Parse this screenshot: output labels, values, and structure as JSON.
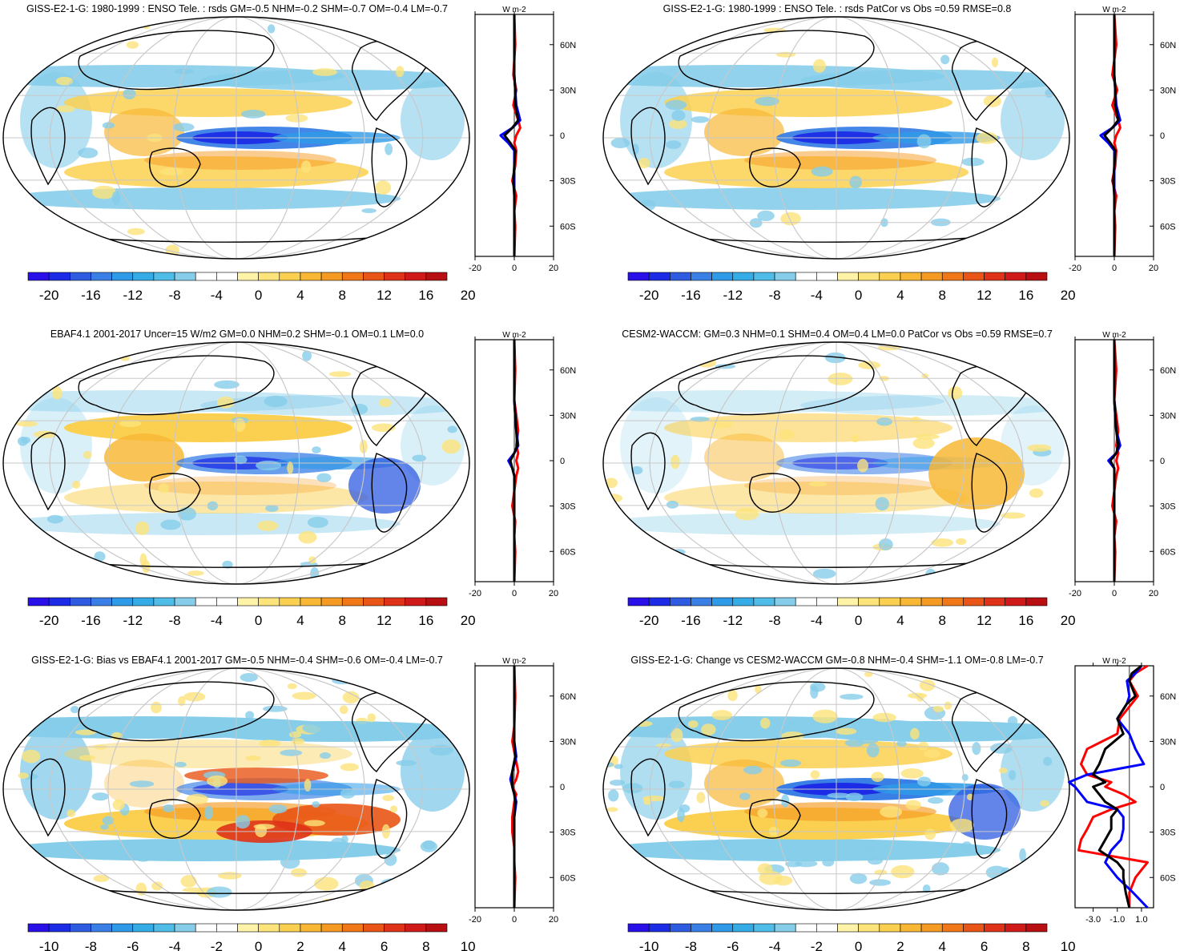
{
  "figure": {
    "panels": [
      {
        "id": "p1",
        "title": "GISS-E2-1-G: 1980-1999 : ENSO Tele. : rsds GM=-0.5 NHM=-0.2 SHM=-0.7 OM=-0.4 LM=-0.7",
        "colorbar_ticks": [
          "-20",
          "-16",
          "-12",
          "-8",
          "-4",
          "0",
          "4",
          "8",
          "12",
          "16",
          "20"
        ],
        "profile_xticks": [
          "-20",
          "0",
          "20"
        ],
        "profile_unit": "W m-2",
        "lat_ticks": [
          "60N",
          "30N",
          "0",
          "30S",
          "60S"
        ]
      },
      {
        "id": "p2",
        "title": "GISS-E2-1-G: 1980-1999 : ENSO Tele. : rsds PatCor vs Obs =0.59 RMSE=0.8",
        "colorbar_ticks": [
          "-20",
          "-16",
          "-12",
          "-8",
          "-4",
          "0",
          "4",
          "8",
          "12",
          "16",
          "20"
        ],
        "profile_xticks": [
          "-20",
          "0",
          "20"
        ],
        "profile_unit": "W m-2",
        "lat_ticks": [
          "60N",
          "30N",
          "0",
          "30S",
          "60S"
        ]
      },
      {
        "id": "p3",
        "title": "EBAF4.1 2001-2017 Uncer=15 W/m2 GM=0.0 NHM=0.2 SHM=-0.1 OM=0.1 LM=0.0",
        "colorbar_ticks": [
          "-20",
          "-16",
          "-12",
          "-8",
          "-4",
          "0",
          "4",
          "8",
          "12",
          "16",
          "20"
        ],
        "profile_xticks": [
          "-20",
          "0",
          "20"
        ],
        "profile_unit": "W m-2",
        "lat_ticks": [
          "60N",
          "30N",
          "0",
          "30S",
          "60S"
        ]
      },
      {
        "id": "p4",
        "title": "CESM2-WACCM: GM=0.3 NHM=0.1 SHM=0.4 OM=0.4 LM=0.0 PatCor vs Obs =0.59 RMSE=0.7",
        "colorbar_ticks": [
          "-20",
          "-16",
          "-12",
          "-8",
          "-4",
          "0",
          "4",
          "8",
          "12",
          "16",
          "20"
        ],
        "profile_xticks": [
          "-20",
          "0",
          "20"
        ],
        "profile_unit": "W m-2",
        "lat_ticks": [
          "60N",
          "30N",
          "0",
          "30S",
          "60S"
        ]
      },
      {
        "id": "p5",
        "title": "GISS-E2-1-G: Bias vs EBAF4.1 2001-2017 GM=-0.5 NHM=-0.4 SHM=-0.6 OM=-0.4 LM=-0.7",
        "colorbar_ticks": [
          "-10",
          "-8",
          "-6",
          "-4",
          "-2",
          "0",
          "2",
          "4",
          "6",
          "8",
          "10"
        ],
        "profile_xticks": [
          "-20",
          "0",
          "20"
        ],
        "profile_unit": "W m-2",
        "lat_ticks": [
          "60N",
          "30N",
          "0",
          "30S",
          "60S"
        ]
      },
      {
        "id": "p6",
        "title": "GISS-E2-1-G: Change vs CESM2-WACCM GM=-0.8 NHM=-0.4 SHM=-1.1 OM=-0.8 LM=-0.7",
        "colorbar_ticks": [
          "-10",
          "-8",
          "-6",
          "-4",
          "-2",
          "0",
          "2",
          "4",
          "6",
          "8",
          "10"
        ],
        "profile_xticks": [
          "-3.0",
          "-1.0",
          "1.0"
        ],
        "profile_unit": "W m-2",
        "lat_ticks": [
          "60N",
          "30N",
          "0",
          "30S",
          "60S"
        ]
      }
    ],
    "colorbar_colors": [
      "#2a10e8",
      "#1c2ce6",
      "#2f5be0",
      "#3a7fe6",
      "#2f9be8",
      "#35ace6",
      "#4fbde8",
      "#86cdea",
      "#ffffff",
      "#ffffff",
      "#fff3a8",
      "#fde47a",
      "#fbd050",
      "#f8b836",
      "#f59a22",
      "#f07818",
      "#e95516",
      "#de3318",
      "#d01a1a",
      "#b80f12"
    ]
  },
  "chart_data": [
    {
      "type": "heatmap",
      "title": "GISS-E2-1-G: 1980-1999 : ENSO Tele. : rsds GM=-0.5 NHM=-0.2 SHM=-0.7 OM=-0.4 LM=-0.7",
      "colorbar_range": [
        -20,
        20
      ],
      "profile": {
        "x_range": [
          -20,
          20
        ],
        "latitude_range": [
          -80,
          80
        ],
        "series": [
          {
            "color": "#ff0000",
            "lat": [
              80,
              60,
              40,
              30,
              20,
              10,
              5,
              0,
              -5,
              -10,
              -20,
              -30,
              -40,
              -50,
              -60,
              -80
            ],
            "values": [
              0,
              0.5,
              -0.5,
              1,
              -0.5,
              2,
              3,
              1,
              0,
              1,
              0.5,
              -1,
              1,
              0,
              0.5,
              0
            ]
          },
          {
            "color": "#0000ff",
            "lat": [
              80,
              60,
              40,
              30,
              20,
              10,
              5,
              0,
              -5,
              -10,
              -20,
              -30,
              -40,
              -50,
              -60,
              -80
            ],
            "values": [
              0,
              0,
              0,
              0.5,
              1,
              3,
              -1,
              -7,
              -3,
              0,
              0,
              0,
              0,
              0,
              0,
              0
            ]
          },
          {
            "color": "#000000",
            "lat": [
              80,
              60,
              40,
              30,
              20,
              10,
              5,
              0,
              -5,
              -10,
              -20,
              -30,
              -40,
              -50,
              -60,
              -80
            ],
            "values": [
              0,
              0,
              0,
              0.5,
              0.5,
              2,
              -1,
              -5,
              -2,
              0.5,
              0,
              -0.5,
              0,
              0,
              0,
              0
            ]
          }
        ]
      }
    },
    {
      "type": "heatmap",
      "title": "GISS-E2-1-G: 1980-1999 : ENSO Tele. : rsds PatCor vs Obs =0.59 RMSE=0.8",
      "colorbar_range": [
        -20,
        20
      ],
      "profile": {
        "x_range": [
          -20,
          20
        ],
        "latitude_range": [
          -80,
          80
        ],
        "series": [
          {
            "color": "#ff0000",
            "lat": [
              80,
              60,
              40,
              30,
              20,
              10,
              5,
              0,
              -5,
              -10,
              -20,
              -30,
              -40,
              -50,
              -60,
              -80
            ],
            "values": [
              0,
              1,
              -1,
              1.5,
              -1,
              2,
              3,
              1,
              0,
              1,
              0.5,
              -1,
              1,
              0,
              0.5,
              0
            ]
          },
          {
            "color": "#0000ff",
            "lat": [
              80,
              60,
              40,
              30,
              20,
              10,
              5,
              0,
              -5,
              -10,
              -20,
              -30,
              -40,
              -50,
              -60,
              -80
            ],
            "values": [
              0,
              0,
              0,
              0.5,
              1,
              3,
              -1,
              -7,
              -3,
              0,
              0,
              0,
              0,
              0,
              0,
              0
            ]
          },
          {
            "color": "#000000",
            "lat": [
              80,
              60,
              40,
              30,
              20,
              10,
              5,
              0,
              -5,
              -10,
              -20,
              -30,
              -40,
              -50,
              -60,
              -80
            ],
            "values": [
              0,
              0,
              0,
              0.5,
              0.5,
              2,
              -1,
              -5,
              -2,
              0.5,
              0,
              -0.5,
              0,
              0,
              0,
              0
            ]
          }
        ]
      }
    },
    {
      "type": "heatmap",
      "title": "EBAF4.1 2001-2017 Uncer=15 W/m2 GM=0.0 NHM=0.2 SHM=-0.1 OM=0.1 LM=0.0",
      "colorbar_range": [
        -20,
        20
      ],
      "profile": {
        "x_range": [
          -20,
          20
        ],
        "latitude_range": [
          -80,
          80
        ],
        "series": [
          {
            "color": "#ff0000",
            "lat": [
              80,
              60,
              40,
              30,
              20,
              10,
              5,
              0,
              -5,
              -10,
              -20,
              -30,
              -40,
              -50,
              -60,
              -80
            ],
            "values": [
              0,
              0.5,
              0,
              1,
              2,
              1,
              2,
              1,
              2,
              1,
              0,
              -1,
              0.5,
              0,
              0.5,
              0
            ]
          },
          {
            "color": "#0000ff",
            "lat": [
              80,
              60,
              40,
              30,
              20,
              10,
              5,
              0,
              -5,
              -10,
              -20,
              -30,
              -40,
              -50,
              -60,
              -80
            ],
            "values": [
              0,
              0,
              0,
              0.5,
              1,
              2,
              0,
              -3,
              -1,
              0,
              0,
              0,
              0,
              0,
              0,
              0
            ]
          },
          {
            "color": "#000000",
            "lat": [
              80,
              60,
              40,
              30,
              20,
              10,
              5,
              0,
              -5,
              -10,
              -20,
              -30,
              -40,
              -50,
              -60,
              -80
            ],
            "values": [
              0,
              0,
              0,
              0.5,
              1,
              1.5,
              0,
              -2,
              -1,
              0,
              0,
              0,
              0,
              0,
              0,
              0
            ]
          }
        ]
      }
    },
    {
      "type": "heatmap",
      "title": "CESM2-WACCM: GM=0.3 NHM=0.1 SHM=0.4 OM=0.4 LM=0.0 PatCor vs Obs =0.59 RMSE=0.7",
      "colorbar_range": [
        -20,
        20
      ],
      "profile": {
        "x_range": [
          -20,
          20
        ],
        "latitude_range": [
          -80,
          80
        ],
        "series": [
          {
            "color": "#ff0000",
            "lat": [
              80,
              60,
              40,
              30,
              20,
              10,
              5,
              0,
              -5,
              -10,
              -20,
              -30,
              -40,
              -50,
              -60,
              -80
            ],
            "values": [
              0,
              1,
              0,
              1,
              2,
              1,
              2,
              1,
              2,
              1,
              0,
              -1,
              1,
              0,
              0.5,
              0
            ]
          },
          {
            "color": "#0000ff",
            "lat": [
              80,
              60,
              40,
              30,
              20,
              10,
              5,
              0,
              -5,
              -10,
              -20,
              -30,
              -40,
              -50,
              -60,
              -80
            ],
            "values": [
              0,
              0,
              0,
              0.5,
              1,
              3,
              1,
              -3,
              0,
              0,
              0,
              0,
              0,
              0,
              0,
              0
            ]
          },
          {
            "color": "#000000",
            "lat": [
              80,
              60,
              40,
              30,
              20,
              10,
              5,
              0,
              -5,
              -10,
              -20,
              -30,
              -40,
              -50,
              -60,
              -80
            ],
            "values": [
              0,
              0,
              0,
              0.5,
              1,
              2,
              1,
              -2,
              0,
              0,
              0,
              0,
              0,
              0,
              0,
              0
            ]
          }
        ]
      }
    },
    {
      "type": "heatmap",
      "title": "GISS-E2-1-G: Bias vs EBAF4.1 2001-2017 GM=-0.5 NHM=-0.4 SHM=-0.6 OM=-0.4 LM=-0.7",
      "colorbar_range": [
        -10,
        10
      ],
      "profile": {
        "x_range": [
          -20,
          20
        ],
        "latitude_range": [
          -80,
          80
        ],
        "series": [
          {
            "color": "#ff0000",
            "lat": [
              80,
              60,
              40,
              30,
              20,
              10,
              5,
              0,
              -5,
              -10,
              -20,
              -30,
              -40,
              -50,
              -60,
              -80
            ],
            "values": [
              0,
              0.5,
              0,
              -1,
              0.5,
              2,
              1,
              -1,
              1,
              0,
              -1,
              -1,
              0,
              0,
              0.5,
              0
            ]
          },
          {
            "color": "#0000ff",
            "lat": [
              80,
              60,
              40,
              30,
              20,
              10,
              5,
              0,
              -5,
              -10,
              -20,
              -30,
              -40,
              -50,
              -60,
              -80
            ],
            "values": [
              0,
              0,
              0,
              0,
              1,
              -1,
              -2,
              -1,
              0,
              1,
              0,
              0,
              0,
              0,
              0,
              0
            ]
          },
          {
            "color": "#000000",
            "lat": [
              80,
              60,
              40,
              30,
              20,
              10,
              5,
              0,
              -5,
              -10,
              -20,
              -30,
              -40,
              -50,
              -60,
              -80
            ],
            "values": [
              0,
              0,
              0,
              0,
              0.5,
              -1,
              -1,
              -1,
              0,
              0.5,
              0,
              0,
              0,
              0,
              0,
              0
            ]
          }
        ]
      }
    },
    {
      "type": "heatmap",
      "title": "GISS-E2-1-G: Change vs CESM2-WACCM GM=-0.8 NHM=-0.4 SHM=-1.1 OM=-0.8 LM=-0.7",
      "colorbar_range": [
        -10,
        10
      ],
      "profile": {
        "x_range": [
          -4.5,
          2.0
        ],
        "latitude_range": [
          -80,
          80
        ],
        "series": [
          {
            "color": "#ff0000",
            "lat": [
              80,
              75,
              70,
              60,
              55,
              45,
              35,
              25,
              15,
              8,
              3,
              0,
              -5,
              -10,
              -15,
              -20,
              -28,
              -35,
              -42,
              -50,
              -55,
              -60,
              -70,
              -80
            ],
            "values": [
              1.5,
              0.5,
              0,
              0.7,
              0.2,
              -0.8,
              -1,
              -3.5,
              -4,
              -3.5,
              -1.5,
              -2,
              -0.5,
              0.5,
              -1.5,
              -3,
              -3.5,
              -4,
              -4.2,
              1.5,
              1,
              0.5,
              0,
              0
            ]
          },
          {
            "color": "#0000ff",
            "lat": [
              80,
              75,
              70,
              60,
              55,
              45,
              35,
              25,
              15,
              8,
              3,
              0,
              -5,
              -10,
              -15,
              -20,
              -28,
              -35,
              -42,
              -50,
              -55,
              -60,
              -70,
              -80
            ],
            "values": [
              1,
              0.5,
              -0.2,
              0,
              -0.2,
              -1,
              0,
              0.5,
              1.2,
              -3.5,
              -5,
              -4.5,
              -4,
              -3.5,
              -1,
              -0.5,
              -0.5,
              -0.7,
              -1.5,
              -2,
              -1.5,
              -1,
              0.3,
              1.5
            ]
          },
          {
            "color": "#000000",
            "lat": [
              80,
              75,
              70,
              60,
              55,
              45,
              35,
              25,
              15,
              8,
              3,
              0,
              -5,
              -10,
              -15,
              -20,
              -28,
              -35,
              -42,
              -50,
              -55,
              -60,
              -70,
              -80
            ],
            "values": [
              1,
              0.2,
              0,
              0.5,
              -0.2,
              -1,
              -0.5,
              -2,
              -2.5,
              -3,
              -2,
              -3,
              -2.5,
              -2,
              -1,
              -1.5,
              -1.5,
              -2,
              -2.5,
              -1,
              -0.5,
              -0.5,
              -0.3,
              0
            ]
          }
        ]
      }
    }
  ]
}
